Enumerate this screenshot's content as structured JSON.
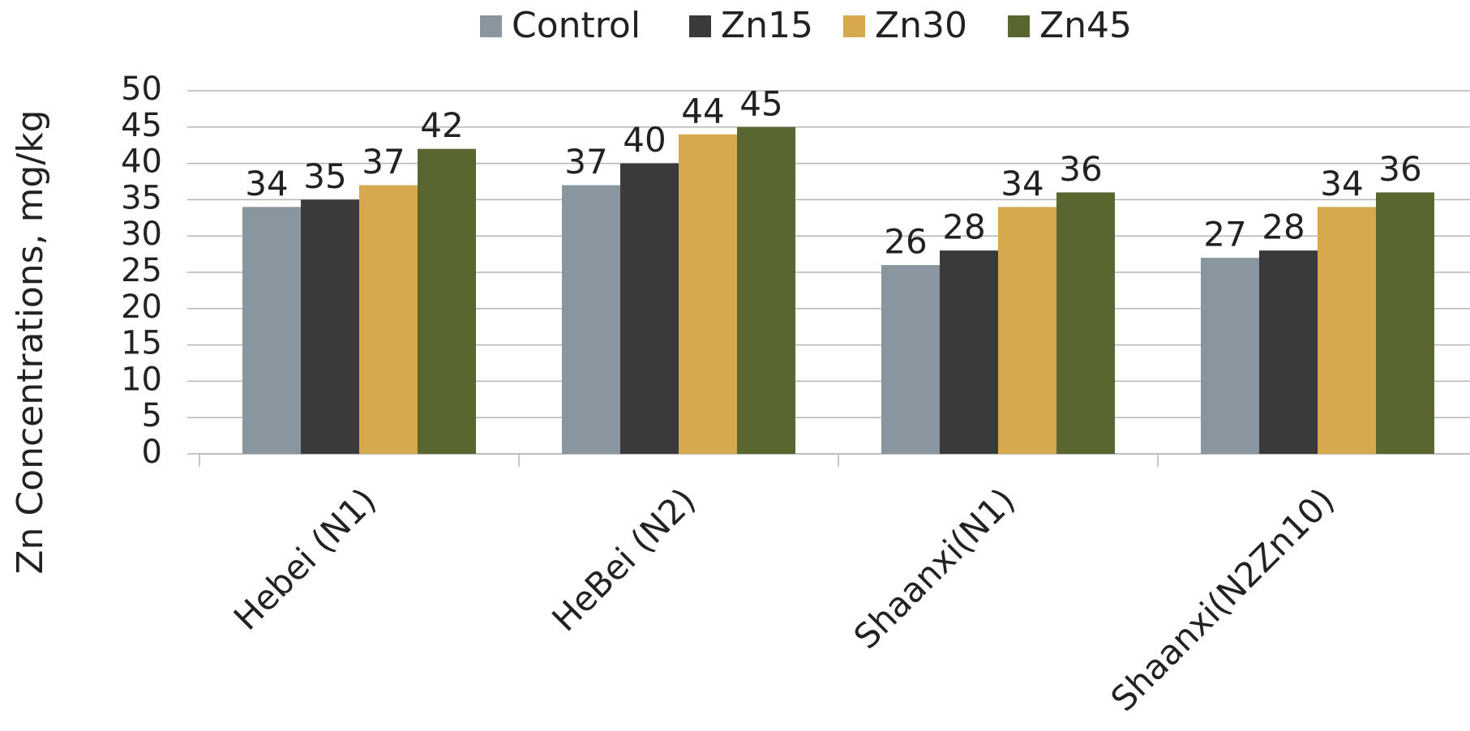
{
  "chart_data": {
    "type": "bar",
    "y_label": "Zn Concentrations, mg/kg",
    "categories": [
      "Hebei (N1)",
      "HeBei (N2)",
      "Shaanxi(N1)",
      "Shaanxi(N2Zn10)"
    ],
    "series": [
      {
        "name": "Control",
        "color": "#8996a0",
        "values": [
          34,
          37,
          26,
          27
        ]
      },
      {
        "name": "Zn15",
        "color": "#3a3a3c",
        "values": [
          35,
          40,
          28,
          28
        ]
      },
      {
        "name": "Zn30",
        "color": "#d6a94e",
        "values": [
          37,
          44,
          34,
          34
        ]
      },
      {
        "name": "Zn45",
        "color": "#5a662f",
        "values": [
          42,
          45,
          36,
          36
        ]
      }
    ],
    "ylim": [
      0,
      50
    ],
    "yticks": [
      0,
      5,
      10,
      15,
      20,
      25,
      30,
      35,
      40,
      45,
      50
    ],
    "grid": true,
    "legend": "top"
  }
}
